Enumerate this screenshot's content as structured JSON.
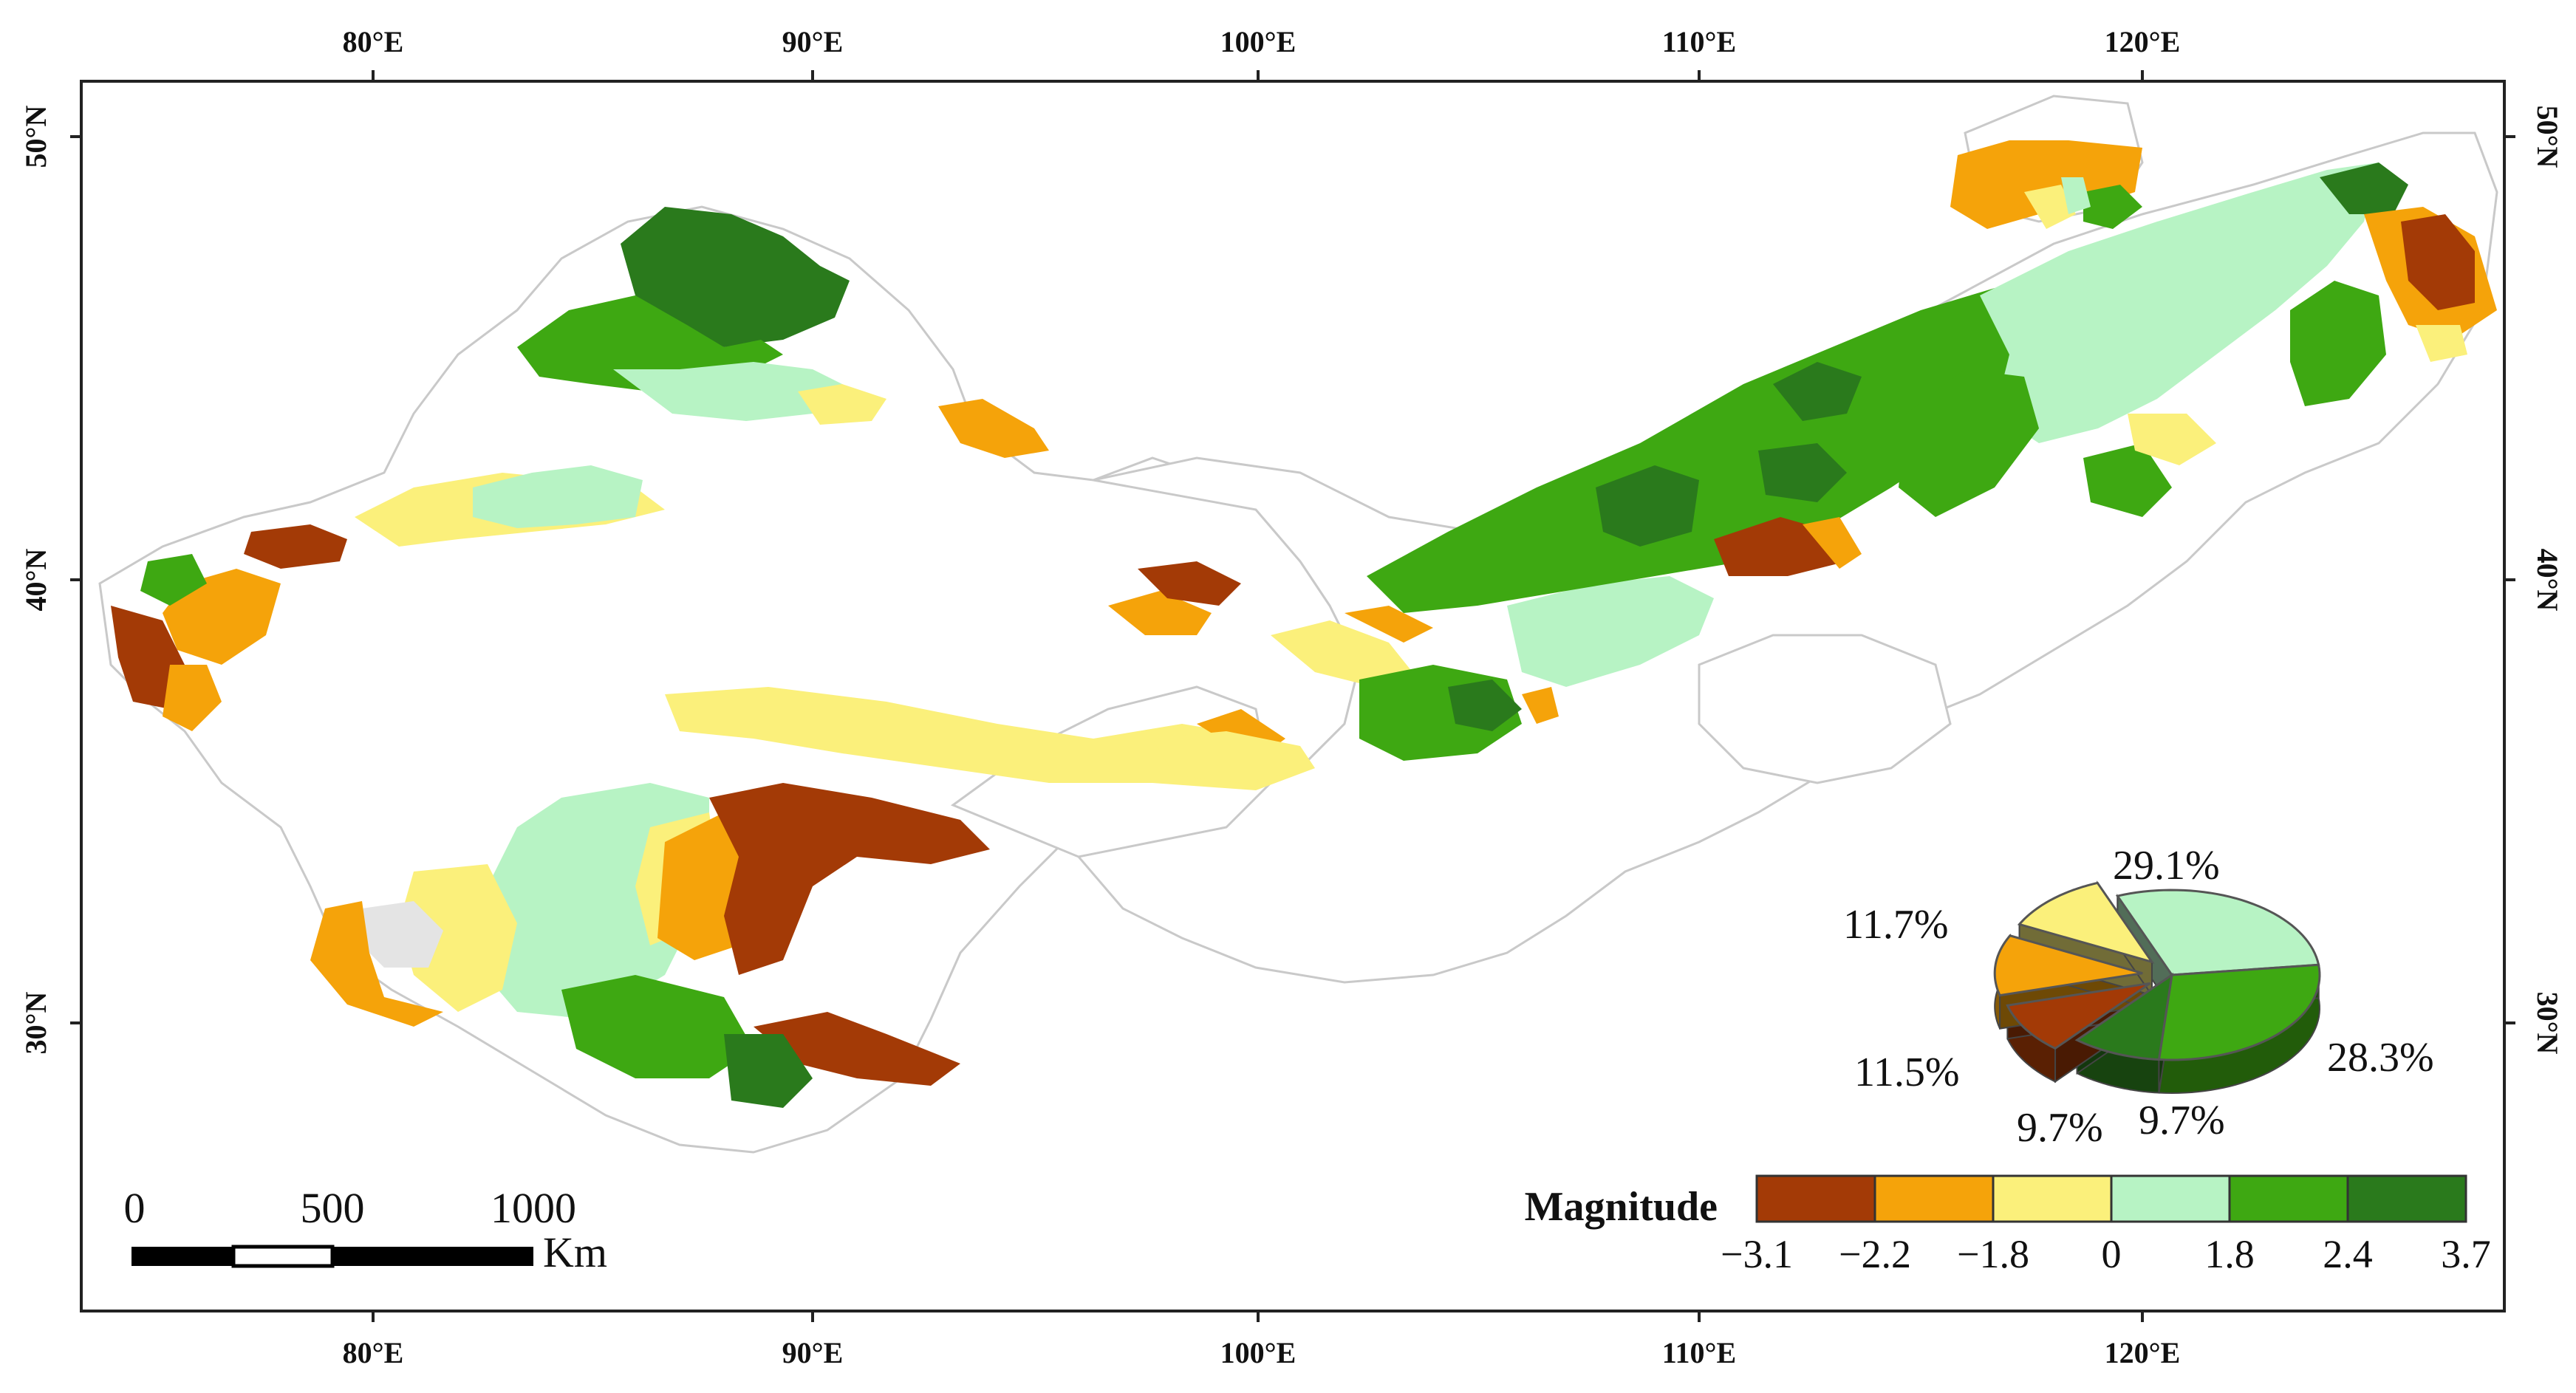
{
  "map": {
    "longitude_ticks": [
      "80°E",
      "90°E",
      "100°E",
      "110°E",
      "120°E"
    ],
    "latitude_ticks": [
      "50°N",
      "40°N",
      "30°N"
    ]
  },
  "legend": {
    "title": "Magnitude",
    "breaks": [
      "−3.1",
      "−2.2",
      "−1.8",
      "0",
      "1.8",
      "2.4",
      "3.7"
    ],
    "classes": [
      {
        "color": "#a33a06"
      },
      {
        "color": "#f5a30a"
      },
      {
        "color": "#fbf07b"
      },
      {
        "color": "#b7f3c4"
      },
      {
        "color": "#3ea812"
      },
      {
        "color": "#2a7a1c"
      }
    ]
  },
  "pie": {
    "slices": [
      {
        "label": "29.1%",
        "value": 29.1,
        "color": "#b7f3c4"
      },
      {
        "label": "28.3%",
        "value": 28.3,
        "color": "#3ea812"
      },
      {
        "label": "9.7%",
        "value": 9.7,
        "color": "#2a7a1c"
      },
      {
        "label": "9.7%",
        "value": 9.7,
        "color": "#a33a06"
      },
      {
        "label": "11.5%",
        "value": 11.5,
        "color": "#f5a30a"
      },
      {
        "label": "11.7%",
        "value": 11.7,
        "color": "#fbf07b"
      }
    ]
  },
  "scale_bar": {
    "labels": [
      "0",
      "500",
      "1000"
    ],
    "unit": "Km"
  }
}
